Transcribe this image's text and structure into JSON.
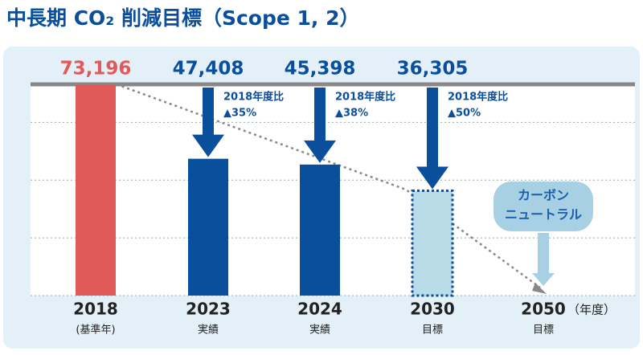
{
  "chart_data": {
    "type": "bar",
    "title": "中長期 CO₂ 削減目標（Scope 1, 2）",
    "categories": [
      "2018",
      "2023",
      "2024",
      "2030",
      "2050"
    ],
    "sublabels": [
      "(基準年)",
      "実績",
      "実績",
      "目標",
      "目標"
    ],
    "x_unit": "（年度）",
    "values": [
      73196,
      47408,
      45398,
      36305,
      0
    ],
    "value_labels": [
      "73,196",
      "47,408",
      "45,398",
      "36,305",
      null
    ],
    "colors": [
      "#e05a5a",
      "#0a4f9c",
      "#0a4f9c",
      "#b9dce8",
      "#b9dce8"
    ],
    "outline_colors": [
      null,
      null,
      null,
      "#0a4f9c",
      null
    ],
    "label_colors": [
      "#e05a5a",
      "#0a4f9c",
      "#0a4f9c",
      "#0a4f9c",
      "#0a4f9c"
    ],
    "annotations": [
      {
        "category": "2023",
        "line1": "2018年度比",
        "line2": "▲35%"
      },
      {
        "category": "2024",
        "line1": "2018年度比",
        "line2": "▲38%"
      },
      {
        "category": "2030",
        "line1": "2018年度比",
        "line2": "▲50%"
      }
    ],
    "badge": {
      "category": "2050",
      "lines": [
        "カーボン",
        "ニュートラル"
      ]
    },
    "ylim": [
      0,
      73196
    ],
    "yticks": [
      0,
      20000,
      40000,
      60000
    ],
    "grid": true
  }
}
